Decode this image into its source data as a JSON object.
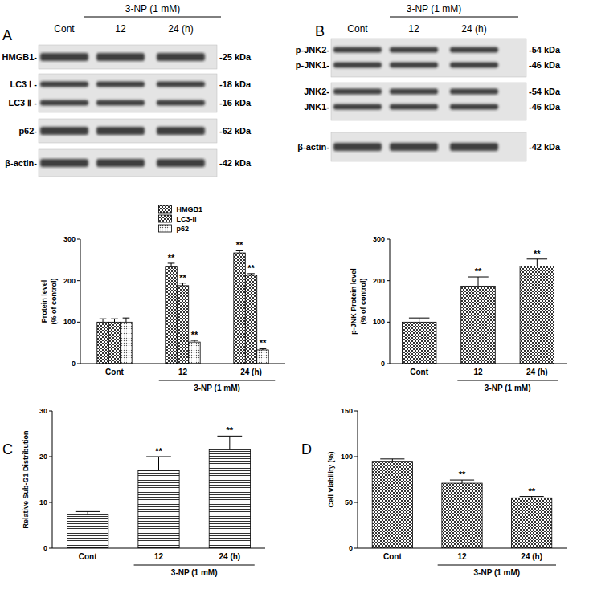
{
  "panels": [
    "A",
    "B",
    "C",
    "D"
  ],
  "blots": [
    {
      "title": "3-NP (1 mM)",
      "lanes": [
        "Cont",
        "12",
        "24 (h)"
      ],
      "rows": [
        {
          "labels": [
            "HMGB1-"
          ],
          "kda": [
            "-25 kDa"
          ]
        },
        {
          "labels": [
            "LC3 Ⅰ -",
            "LC3 Ⅱ -"
          ],
          "kda": [
            "-18 kDa",
            "-16 kDa"
          ]
        },
        {
          "labels": [
            "p62-"
          ],
          "kda": [
            "-62 kDa"
          ]
        },
        {
          "labels": [
            "β-actin-"
          ],
          "kda": [
            "-42 kDa"
          ]
        }
      ]
    },
    {
      "title": "3-NP (1 mM)",
      "lanes": [
        "Cont",
        "12",
        "24 (h)"
      ],
      "rows": [
        {
          "labels": [
            "p-JNK2-",
            "p-JNK1-"
          ],
          "kda": [
            "-54 kDa",
            "-46 kDa"
          ]
        },
        {
          "labels": [
            "JNK2-",
            "JNK1-"
          ],
          "kda": [
            "-54 kDa",
            "-46 kDa"
          ]
        },
        {
          "labels": [
            "β-actin-"
          ],
          "kda": [
            "-42 kDa"
          ]
        }
      ]
    }
  ],
  "chart_data": [
    {
      "type": "bar",
      "ylabel": [
        "Protein level",
        "(% of control)"
      ],
      "xlabel": "3-NP (1 mM)",
      "categories": [
        "Cont",
        "12",
        "24 (h)"
      ],
      "ylim": [
        0,
        300
      ],
      "yticks": [
        0,
        100,
        200,
        300
      ],
      "legend": "upper center",
      "series": [
        {
          "name": "HMGB1",
          "color": "#333333",
          "values": [
            100,
            233,
            267
          ],
          "errors": [
            8,
            9,
            5
          ],
          "significance": [
            null,
            "**",
            "**"
          ]
        },
        {
          "name": "LC3-II",
          "color": "#333333",
          "values": [
            100,
            188,
            213
          ],
          "errors": [
            8,
            6,
            4
          ],
          "significance": [
            null,
            "**",
            "**"
          ]
        },
        {
          "name": "p62",
          "color": "#555555",
          "values": [
            100,
            52,
            33
          ],
          "errors": [
            10,
            4,
            3
          ],
          "significance": [
            null,
            "**",
            "**"
          ]
        }
      ]
    },
    {
      "type": "bar",
      "ylabel": [
        "p-JNK Protein level",
        "(% of control)"
      ],
      "xlabel": "3-NP (1 mM)",
      "categories": [
        "Cont",
        "12",
        "24 (h)"
      ],
      "ylim": [
        0,
        300
      ],
      "yticks": [
        0,
        100,
        200,
        300
      ],
      "color": "#333333",
      "values": [
        100,
        187,
        235
      ],
      "errors": [
        10,
        22,
        17
      ],
      "significance": [
        null,
        "**",
        "**"
      ]
    },
    {
      "type": "bar",
      "ylabel": [
        "Relative Sub-G1 Distribution"
      ],
      "xlabel": "3-NP (1 mM)",
      "categories": [
        "Cont",
        "12",
        "24 (h)"
      ],
      "ylim": [
        0,
        30
      ],
      "yticks": [
        0,
        10,
        20,
        30
      ],
      "color": "#333333",
      "values": [
        7.3,
        17,
        21.5
      ],
      "errors": [
        0.7,
        3,
        3
      ],
      "significance": [
        null,
        "**",
        "**"
      ]
    },
    {
      "type": "bar",
      "ylabel": [
        "Cell Viability (%)"
      ],
      "xlabel": "3-NP (1 mM)",
      "categories": [
        "Cont",
        "12",
        "24 (h)"
      ],
      "ylim": [
        0,
        150
      ],
      "yticks": [
        0,
        50,
        100,
        150
      ],
      "color": "#333333",
      "values": [
        95,
        71,
        55
      ],
      "errors": [
        2.5,
        3.5,
        1.5
      ],
      "significance": [
        null,
        "**",
        "**"
      ]
    }
  ]
}
